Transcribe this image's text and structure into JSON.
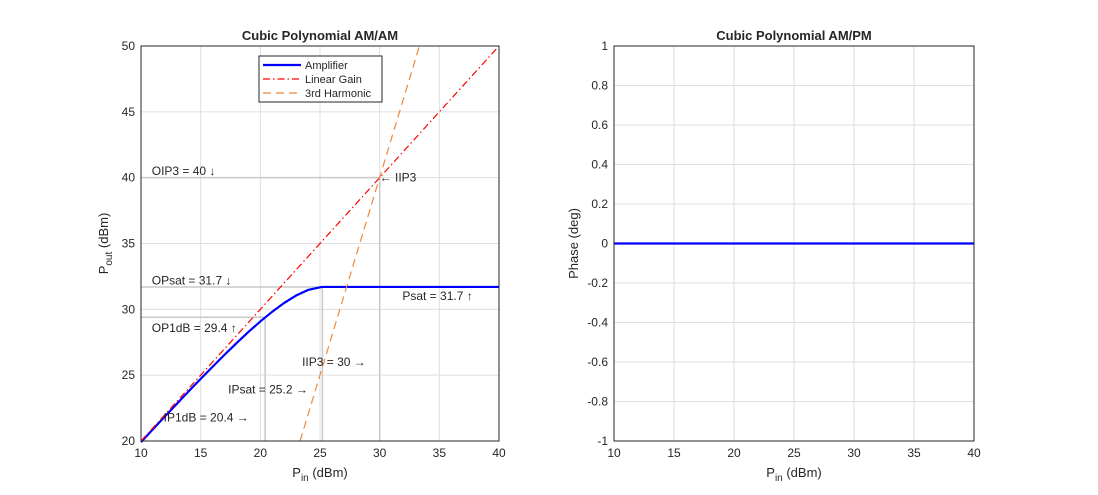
{
  "chart_data": [
    {
      "type": "line",
      "title": "Cubic Polynomial AM/AM",
      "xlabel": "P_in  (dBm)",
      "ylabel": "P_out  (dBm)",
      "xlim": [
        10,
        40
      ],
      "ylim": [
        20,
        50
      ],
      "xticks": [
        10,
        15,
        20,
        25,
        30,
        35,
        40
      ],
      "yticks": [
        20,
        25,
        30,
        35,
        40,
        45,
        50
      ],
      "grid": true,
      "legend": "top-center",
      "series": [
        {
          "name": "Amplifier",
          "color": "#0000ff",
          "style": "solid",
          "x": [
            10,
            11,
            12,
            13,
            14,
            15,
            16,
            17,
            18,
            19,
            20,
            21,
            22,
            23,
            24,
            25,
            25.2,
            40
          ],
          "y": [
            19.91,
            20.89,
            21.86,
            22.82,
            23.78,
            24.72,
            25.64,
            26.55,
            27.43,
            28.28,
            29.08,
            29.82,
            30.49,
            31.05,
            31.47,
            31.67,
            31.7,
            31.7
          ]
        },
        {
          "name": "Linear Gain",
          "color": "#ff0000",
          "style": "dashdot",
          "x": [
            10,
            40
          ],
          "y": [
            20,
            50
          ]
        },
        {
          "name": "3rd Harmonic",
          "color": "#f0883c",
          "style": "dashed",
          "x": [
            23.33,
            33.33
          ],
          "y": [
            20,
            50
          ]
        }
      ],
      "annotations": [
        {
          "text": "OIP3  =  40 ↓",
          "x": 10.9,
          "y": 40.5
        },
        {
          "text": "← IIP3",
          "x": 30,
          "y": 40
        },
        {
          "text": "OPsat  =  31.7 ↓",
          "x": 10.9,
          "y": 32.2
        },
        {
          "text": "Psat  =  31.7   ↑",
          "x": 31.9,
          "y": 31.0
        },
        {
          "text": "OP1dB  =  29.4 ↑",
          "x": 10.9,
          "y": 28.6
        },
        {
          "text": "IIP3  =  30 →",
          "x": 23.5,
          "y": 26.0
        },
        {
          "text": "IPsat  =  25.2 →",
          "x": 17.3,
          "y": 23.9
        },
        {
          "text": "IP1dB  =  20.4 →",
          "x": 11.9,
          "y": 21.8
        }
      ],
      "reference_lines": [
        {
          "x": [
            10,
            30
          ],
          "y": [
            40,
            40
          ]
        },
        {
          "x": [
            30,
            30
          ],
          "y": [
            20,
            40
          ]
        },
        {
          "x": [
            10,
            25.2
          ],
          "y": [
            31.7,
            31.7
          ]
        },
        {
          "x": [
            25.2,
            25.2
          ],
          "y": [
            20,
            31.7
          ]
        },
        {
          "x": [
            10,
            20.4
          ],
          "y": [
            29.4,
            29.4
          ]
        },
        {
          "x": [
            20.4,
            20.4
          ],
          "y": [
            20,
            29.4
          ]
        }
      ]
    },
    {
      "type": "line",
      "title": "Cubic Polynomial AM/PM",
      "xlabel": "P_in  (dBm)",
      "ylabel": "Phase (deg)",
      "xlim": [
        10,
        40
      ],
      "ylim": [
        -1,
        1
      ],
      "xticks": [
        10,
        15,
        20,
        25,
        30,
        35,
        40
      ],
      "yticks": [
        -1,
        -0.8,
        -0.6,
        -0.4,
        -0.2,
        0,
        0.2,
        0.4,
        0.6,
        0.8,
        1
      ],
      "grid": true,
      "series": [
        {
          "color": "#0000ff",
          "style": "solid",
          "x": [
            10,
            40
          ],
          "y": [
            0,
            0
          ]
        }
      ]
    }
  ]
}
